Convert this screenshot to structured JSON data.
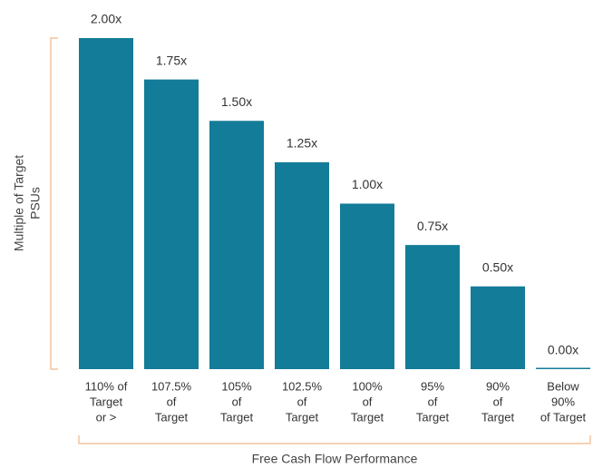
{
  "chart_data": {
    "type": "bar",
    "y_label": [
      "Multiple of Target",
      "PSUs"
    ],
    "x_label": "Free Cash Flow Performance",
    "categories": [
      [
        "110% of",
        "Target",
        "or >"
      ],
      [
        "107.5%",
        "of",
        "Target"
      ],
      [
        "105%",
        "of",
        "Target"
      ],
      [
        "102.5%",
        "of",
        "Target"
      ],
      [
        "100%",
        "of",
        "Target"
      ],
      [
        "95%",
        "of",
        "Target"
      ],
      [
        "90%",
        "of",
        "Target"
      ],
      [
        "Below",
        "90%",
        "of Target"
      ]
    ],
    "values": [
      2.0,
      1.75,
      1.5,
      1.25,
      1.0,
      0.75,
      0.5,
      0.0
    ],
    "value_labels": [
      "2.00x",
      "1.75x",
      "1.50x",
      "1.25x",
      "1.00x",
      "0.75x",
      "0.50x",
      "0.00x"
    ],
    "color": "#137c98",
    "ylim": [
      0,
      2
    ]
  }
}
